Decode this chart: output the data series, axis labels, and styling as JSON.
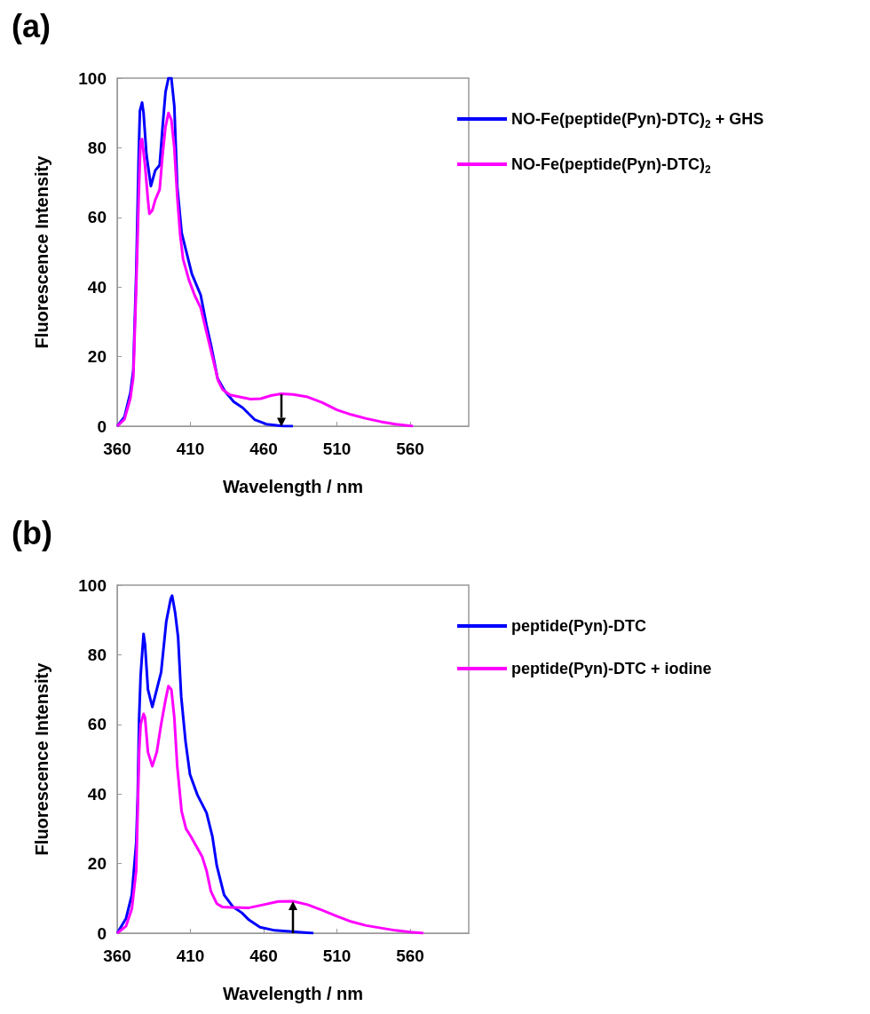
{
  "chart_data": [
    {
      "type": "line",
      "title": "(a)",
      "xlabel": "Wavelength / nm",
      "ylabel": "Fluorescence Intensity",
      "xlim": [
        360,
        600
      ],
      "xticks": [
        360,
        410,
        460,
        510,
        560
      ],
      "ylim": [
        0,
        100
      ],
      "yticks": [
        0,
        20,
        40,
        60,
        80,
        100
      ],
      "legend": "right",
      "grid": false,
      "marker": "none",
      "line_style": "solid",
      "series": [
        {
          "name": "NO-Fe(peptide(Pyn)-DTC)$_{2}$ + GHS",
          "color": "#0000ff",
          "x": [
            360,
            365,
            369,
            371,
            373,
            374.7,
            375.5,
            377,
            378,
            380,
            383,
            386,
            389,
            391,
            393,
            395,
            397,
            399,
            401,
            404,
            407,
            411,
            417,
            421,
            424.5,
            428.5,
            433.6,
            439.6,
            445.7,
            453.8,
            461.8,
            474,
            480
          ],
          "values": [
            0,
            2.7,
            9.6,
            16,
            44,
            78,
            90.6,
            93,
            90,
            78,
            69,
            73.5,
            75,
            86,
            96,
            100,
            100,
            92,
            69,
            55.6,
            50.5,
            43.7,
            37.7,
            29,
            22.4,
            13.8,
            10,
            7,
            5.3,
            1.9,
            0.6,
            0,
            0
          ]
        },
        {
          "name": "NO-Fe(peptide(Pyn)-DTC)$_{2}$",
          "color": "#ff00ff",
          "x": [
            360,
            365,
            369,
            371,
            373,
            375,
            376,
            377,
            379,
            381,
            382,
            384,
            386,
            389,
            391,
            393,
            395,
            397,
            399,
            401,
            403,
            405,
            409,
            413,
            417,
            421,
            425,
            429,
            432,
            437,
            445,
            451,
            458,
            465,
            472,
            480,
            490,
            500,
            510,
            520,
            530,
            540,
            550,
            562
          ],
          "values": [
            0,
            2,
            8,
            14,
            40,
            70,
            82,
            82.5,
            75,
            65,
            61,
            62,
            65,
            68,
            78,
            86,
            90,
            88,
            80,
            66,
            55,
            48,
            42,
            37.5,
            34,
            27,
            20,
            13,
            10.5,
            9,
            8.3,
            7.8,
            7.9,
            8.8,
            9.3,
            9.1,
            8.4,
            6.8,
            4.7,
            3.3,
            2.2,
            1.3,
            0.6,
            0
          ]
        }
      ]
    },
    {
      "type": "line",
      "title": "(b)",
      "xlabel": "Wavelength / nm",
      "ylabel": "Fluorescence Intensity",
      "xlim": [
        360,
        600
      ],
      "xticks": [
        360,
        410,
        460,
        510,
        560
      ],
      "ylim": [
        0,
        100
      ],
      "yticks": [
        0,
        20,
        40,
        60,
        80,
        100
      ],
      "legend": "right",
      "grid": false,
      "marker": "none",
      "line_style": "solid",
      "series": [
        {
          "name": "peptide(Pyn)-DTC",
          "color": "#0000ff",
          "x": [
            360,
            366,
            370,
            373,
            374,
            375,
            376,
            378,
            379,
            381,
            384,
            387,
            390,
            393.5,
            396.5,
            397.5,
            399.6,
            401.6,
            403.7,
            406.7,
            409.7,
            414.8,
            421,
            425,
            428,
            433,
            439,
            445,
            450,
            457.5,
            467.6,
            494
          ],
          "values": [
            0,
            4.2,
            11,
            26,
            39,
            62,
            74,
            86,
            83,
            70,
            65,
            70,
            75,
            89.5,
            96,
            97,
            92,
            85,
            68,
            55,
            45.6,
            39.7,
            34.6,
            27.8,
            19.4,
            11,
            7.6,
            5.9,
            3.8,
            1.7,
            0.8,
            0
          ]
        },
        {
          "name": "peptide(Pyn)-DTC + iodine",
          "color": "#ff00ff",
          "x": [
            360,
            366,
            370,
            373,
            374,
            375,
            376,
            378,
            379,
            381,
            384,
            387,
            390,
            393,
            395,
            397,
            399,
            401,
            404,
            407,
            410,
            414,
            418,
            421,
            424,
            428,
            432,
            440,
            450,
            460,
            470,
            480,
            490,
            500,
            510,
            520,
            530,
            540,
            550,
            560,
            569
          ],
          "values": [
            0,
            2,
            7,
            18,
            35,
            52,
            60,
            63,
            62,
            52,
            48,
            52,
            60,
            67,
            71,
            70,
            62,
            48,
            35,
            30,
            28,
            25,
            22,
            18,
            12,
            8.5,
            7.5,
            7.4,
            7.3,
            8.2,
            9.1,
            9.2,
            8.2,
            6.6,
            4.9,
            3.3,
            2.2,
            1.5,
            0.8,
            0.3,
            0
          ]
        }
      ]
    }
  ]
}
